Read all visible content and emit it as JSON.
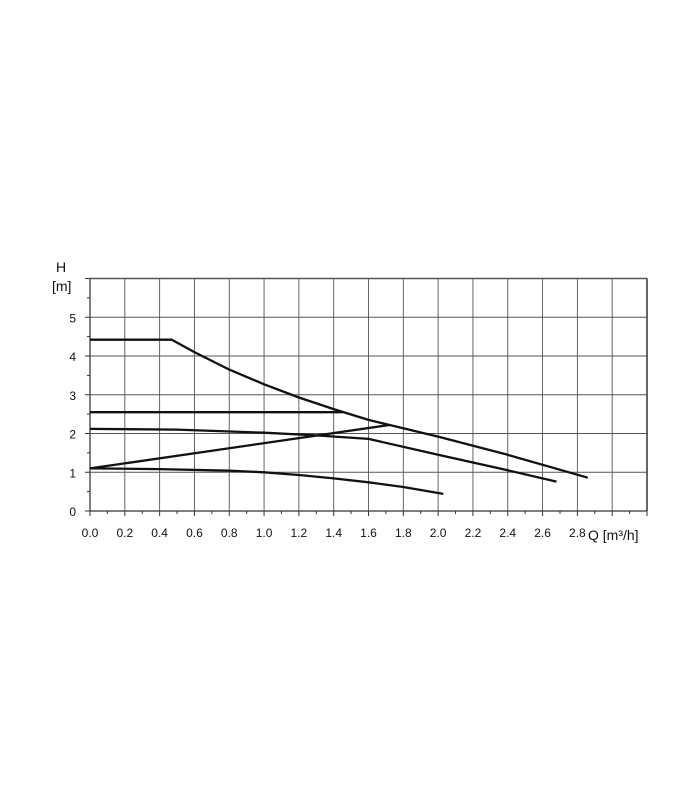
{
  "chart_data": {
    "type": "line",
    "title": "",
    "ylabel_symbol": "H",
    "ylabel_unit": "[m]",
    "xlabel": "Q [m³/h]",
    "xlim": [
      0,
      3.2
    ],
    "ylim": [
      0,
      6
    ],
    "grid": true,
    "x_ticks": [
      "0.0",
      "0.2",
      "0.4",
      "0.6",
      "0.8",
      "1.0",
      "1.2",
      "1.4",
      "1.6",
      "1.8",
      "2.0",
      "2.2",
      "2.4",
      "2.6",
      "2.8"
    ],
    "y_ticks": [
      "0",
      "1",
      "2",
      "3",
      "4",
      "5"
    ],
    "line_color": "#111111",
    "series": [
      {
        "x": [
          0,
          0.47,
          0.6,
          0.8,
          1.0,
          1.2,
          1.4,
          1.6,
          2.0,
          2.4,
          2.86
        ],
        "y": [
          4.42,
          4.42,
          4.1,
          3.65,
          3.27,
          2.93,
          2.63,
          2.35,
          1.92,
          1.45,
          0.86
        ]
      },
      {
        "x": [
          0,
          1.45
        ],
        "y": [
          2.55,
          2.55
        ]
      },
      {
        "x": [
          0,
          1.72
        ],
        "y": [
          1.1,
          2.22
        ]
      },
      {
        "x": [
          0,
          0.5,
          1.0,
          1.3,
          1.6,
          2.0,
          2.4,
          2.68
        ],
        "y": [
          2.12,
          2.1,
          2.02,
          1.95,
          1.86,
          1.45,
          1.05,
          0.76
        ]
      },
      {
        "x": [
          0,
          0.4,
          0.8,
          1.0,
          1.2,
          1.4,
          1.6,
          1.8,
          2.03
        ],
        "y": [
          1.1,
          1.08,
          1.04,
          1.0,
          0.93,
          0.84,
          0.74,
          0.62,
          0.44
        ]
      }
    ]
  }
}
